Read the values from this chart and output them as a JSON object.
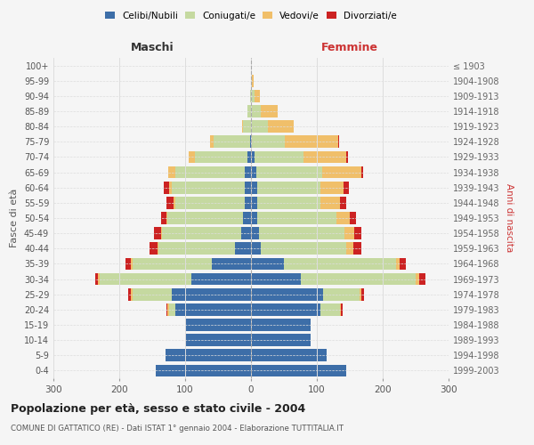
{
  "age_groups": [
    "0-4",
    "5-9",
    "10-14",
    "15-19",
    "20-24",
    "25-29",
    "30-34",
    "35-39",
    "40-44",
    "45-49",
    "50-54",
    "55-59",
    "60-64",
    "65-69",
    "70-74",
    "75-79",
    "80-84",
    "85-89",
    "90-94",
    "95-99",
    "100+"
  ],
  "birth_years": [
    "1999-2003",
    "1994-1998",
    "1989-1993",
    "1984-1988",
    "1979-1983",
    "1974-1978",
    "1969-1973",
    "1964-1968",
    "1959-1963",
    "1954-1958",
    "1949-1953",
    "1944-1948",
    "1939-1943",
    "1934-1938",
    "1929-1933",
    "1924-1928",
    "1919-1923",
    "1914-1918",
    "1909-1913",
    "1904-1908",
    "≤ 1903"
  ],
  "male": {
    "celibi": [
      145,
      130,
      100,
      100,
      115,
      120,
      90,
      60,
      25,
      15,
      12,
      10,
      10,
      10,
      5,
      2,
      0,
      0,
      0,
      0,
      0
    ],
    "coniugati": [
      0,
      0,
      0,
      0,
      10,
      60,
      140,
      120,
      115,
      120,
      115,
      105,
      110,
      105,
      80,
      55,
      12,
      5,
      2,
      0,
      0
    ],
    "vedovi": [
      0,
      0,
      0,
      0,
      2,
      3,
      2,
      2,
      2,
      2,
      2,
      3,
      5,
      10,
      10,
      5,
      2,
      0,
      0,
      0,
      0
    ],
    "divorziati": [
      0,
      0,
      0,
      0,
      2,
      3,
      5,
      8,
      12,
      10,
      8,
      10,
      8,
      0,
      0,
      0,
      0,
      0,
      0,
      0,
      0
    ]
  },
  "female": {
    "nubili": [
      145,
      115,
      90,
      90,
      105,
      110,
      75,
      50,
      15,
      12,
      10,
      10,
      10,
      8,
      5,
      2,
      0,
      0,
      0,
      0,
      0
    ],
    "coniugate": [
      0,
      0,
      0,
      0,
      30,
      55,
      175,
      170,
      130,
      130,
      120,
      95,
      95,
      100,
      75,
      50,
      25,
      15,
      5,
      2,
      0
    ],
    "vedove": [
      0,
      0,
      0,
      0,
      2,
      3,
      5,
      5,
      10,
      15,
      20,
      30,
      35,
      60,
      65,
      80,
      40,
      25,
      8,
      2,
      0
    ],
    "divorziate": [
      0,
      0,
      0,
      0,
      2,
      3,
      10,
      10,
      12,
      10,
      10,
      10,
      8,
      2,
      2,
      2,
      0,
      0,
      0,
      0,
      0
    ]
  },
  "colors": {
    "celibi_nubili": "#3d6ea8",
    "coniugati": "#c5d9a0",
    "vedovi": "#f0bf6a",
    "divorziati": "#cc2222"
  },
  "title": "Popolazione per età, sesso e stato civile - 2004",
  "subtitle": "COMUNE DI GATTATICO (RE) - Dati ISTAT 1° gennaio 2004 - Elaborazione TUTTITALIA.IT",
  "xlabel_left": "Maschi",
  "xlabel_right": "Femmine",
  "ylabel_left": "Fasce di età",
  "ylabel_right": "Anni di nascita",
  "xlim": 300,
  "bg_color": "#f5f5f5",
  "grid_color": "#dddddd"
}
